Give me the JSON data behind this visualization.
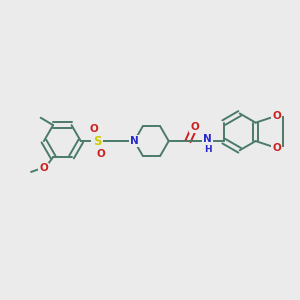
{
  "bg_color": "#ebebeb",
  "bond_color": "#4a7a6a",
  "atom_colors": {
    "N": "#2828cc",
    "O": "#cc2020",
    "S": "#cccc00",
    "C": "#4a7a6a",
    "H": "#4a7a6a"
  },
  "lw": 1.4,
  "fs": 7.5
}
